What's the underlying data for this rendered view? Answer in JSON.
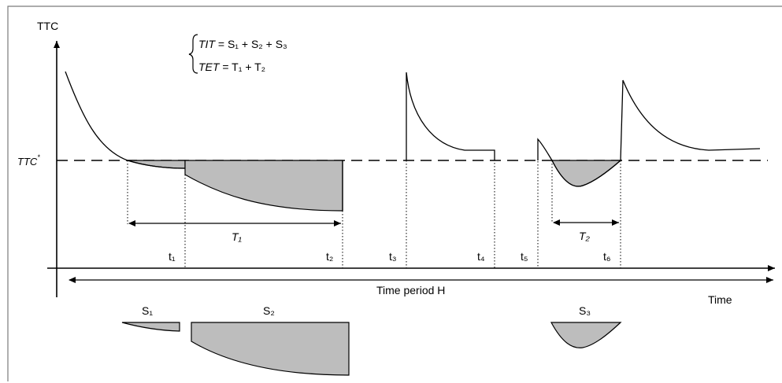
{
  "diagram": {
    "y_axis_label": "TTC",
    "x_axis_label": "Time",
    "threshold_label": "TTC",
    "threshold_superscript": "*",
    "time_period_label": "Time period H",
    "equations": {
      "tit_lhs": "TIT",
      "tit_rhs": " = S₁ + S₂ + S₃",
      "tet_lhs": "TET",
      "tet_rhs": " = T₁ + T₂"
    },
    "interval_labels": {
      "T1": "T₁",
      "T2": "T₂"
    },
    "time_ticks": [
      "t₁",
      "t₂",
      "t₃",
      "t₄",
      "t₅",
      "t₆"
    ],
    "area_labels": [
      "S₁",
      "S₂",
      "S₃"
    ],
    "colors": {
      "shaded_area": "#bdbdbd",
      "lines": "#000000",
      "frame": "#7a7a7a"
    }
  }
}
